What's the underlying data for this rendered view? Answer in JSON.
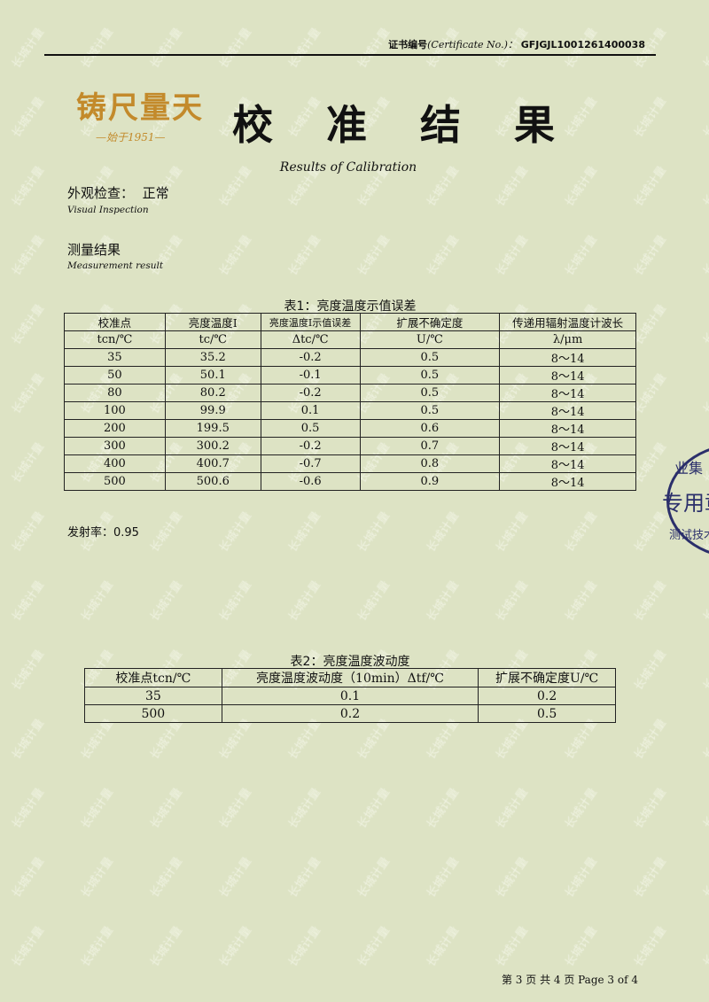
{
  "header": {
    "cert_label": "证书编号",
    "cert_label_en": "(Certificate No.)：",
    "cert_no": "GFJGJL1001261400038"
  },
  "logo": {
    "text": "铸尺量天",
    "sub": "—始于1951—"
  },
  "title": "校 准 结 果",
  "subtitle": "Results of Calibration",
  "visual": {
    "label": "外观检查：",
    "value": "正常",
    "en": "Visual Inspection"
  },
  "measure": {
    "label": "测量结果",
    "en": "Measurement result"
  },
  "table1": {
    "caption": "表1：亮度温度示值误差",
    "headers": [
      "校准点",
      "亮度温度I",
      "亮度温度I示值误差",
      "扩展不确定度",
      "传递用辐射温度计波长"
    ],
    "units": [
      "tcn/℃",
      "tc/℃",
      "Δtc/℃",
      "U/℃",
      "λ/μm"
    ],
    "rows": [
      [
        "35",
        "35.2",
        "-0.2",
        "0.5",
        "8～14"
      ],
      [
        "50",
        "50.1",
        "-0.1",
        "0.5",
        "8～14"
      ],
      [
        "80",
        "80.2",
        "-0.2",
        "0.5",
        "8～14"
      ],
      [
        "100",
        "99.9",
        "0.1",
        "0.5",
        "8～14"
      ],
      [
        "200",
        "199.5",
        "0.5",
        "0.6",
        "8～14"
      ],
      [
        "300",
        "300.2",
        "-0.2",
        "0.7",
        "8～14"
      ],
      [
        "400",
        "400.7",
        "-0.7",
        "0.8",
        "8～14"
      ],
      [
        "500",
        "500.6",
        "-0.6",
        "0.9",
        "8～14"
      ]
    ]
  },
  "emissivity": "发射率：0.95",
  "table2": {
    "caption": "表2：亮度温度波动度",
    "headers": [
      "校准点tcn/℃",
      "亮度温度波动度（10min）Δtf/℃",
      "扩展不确定度U/℃"
    ],
    "rows": [
      [
        "35",
        "0.1",
        "0.2"
      ],
      [
        "500",
        "0.2",
        "0.5"
      ]
    ]
  },
  "stamp": {
    "line1": "业集",
    "line2": "专用章",
    "line3": "测试技术"
  },
  "footer": "第 3 页 共 4 页  Page 3 of 4",
  "watermark": "长城计量"
}
